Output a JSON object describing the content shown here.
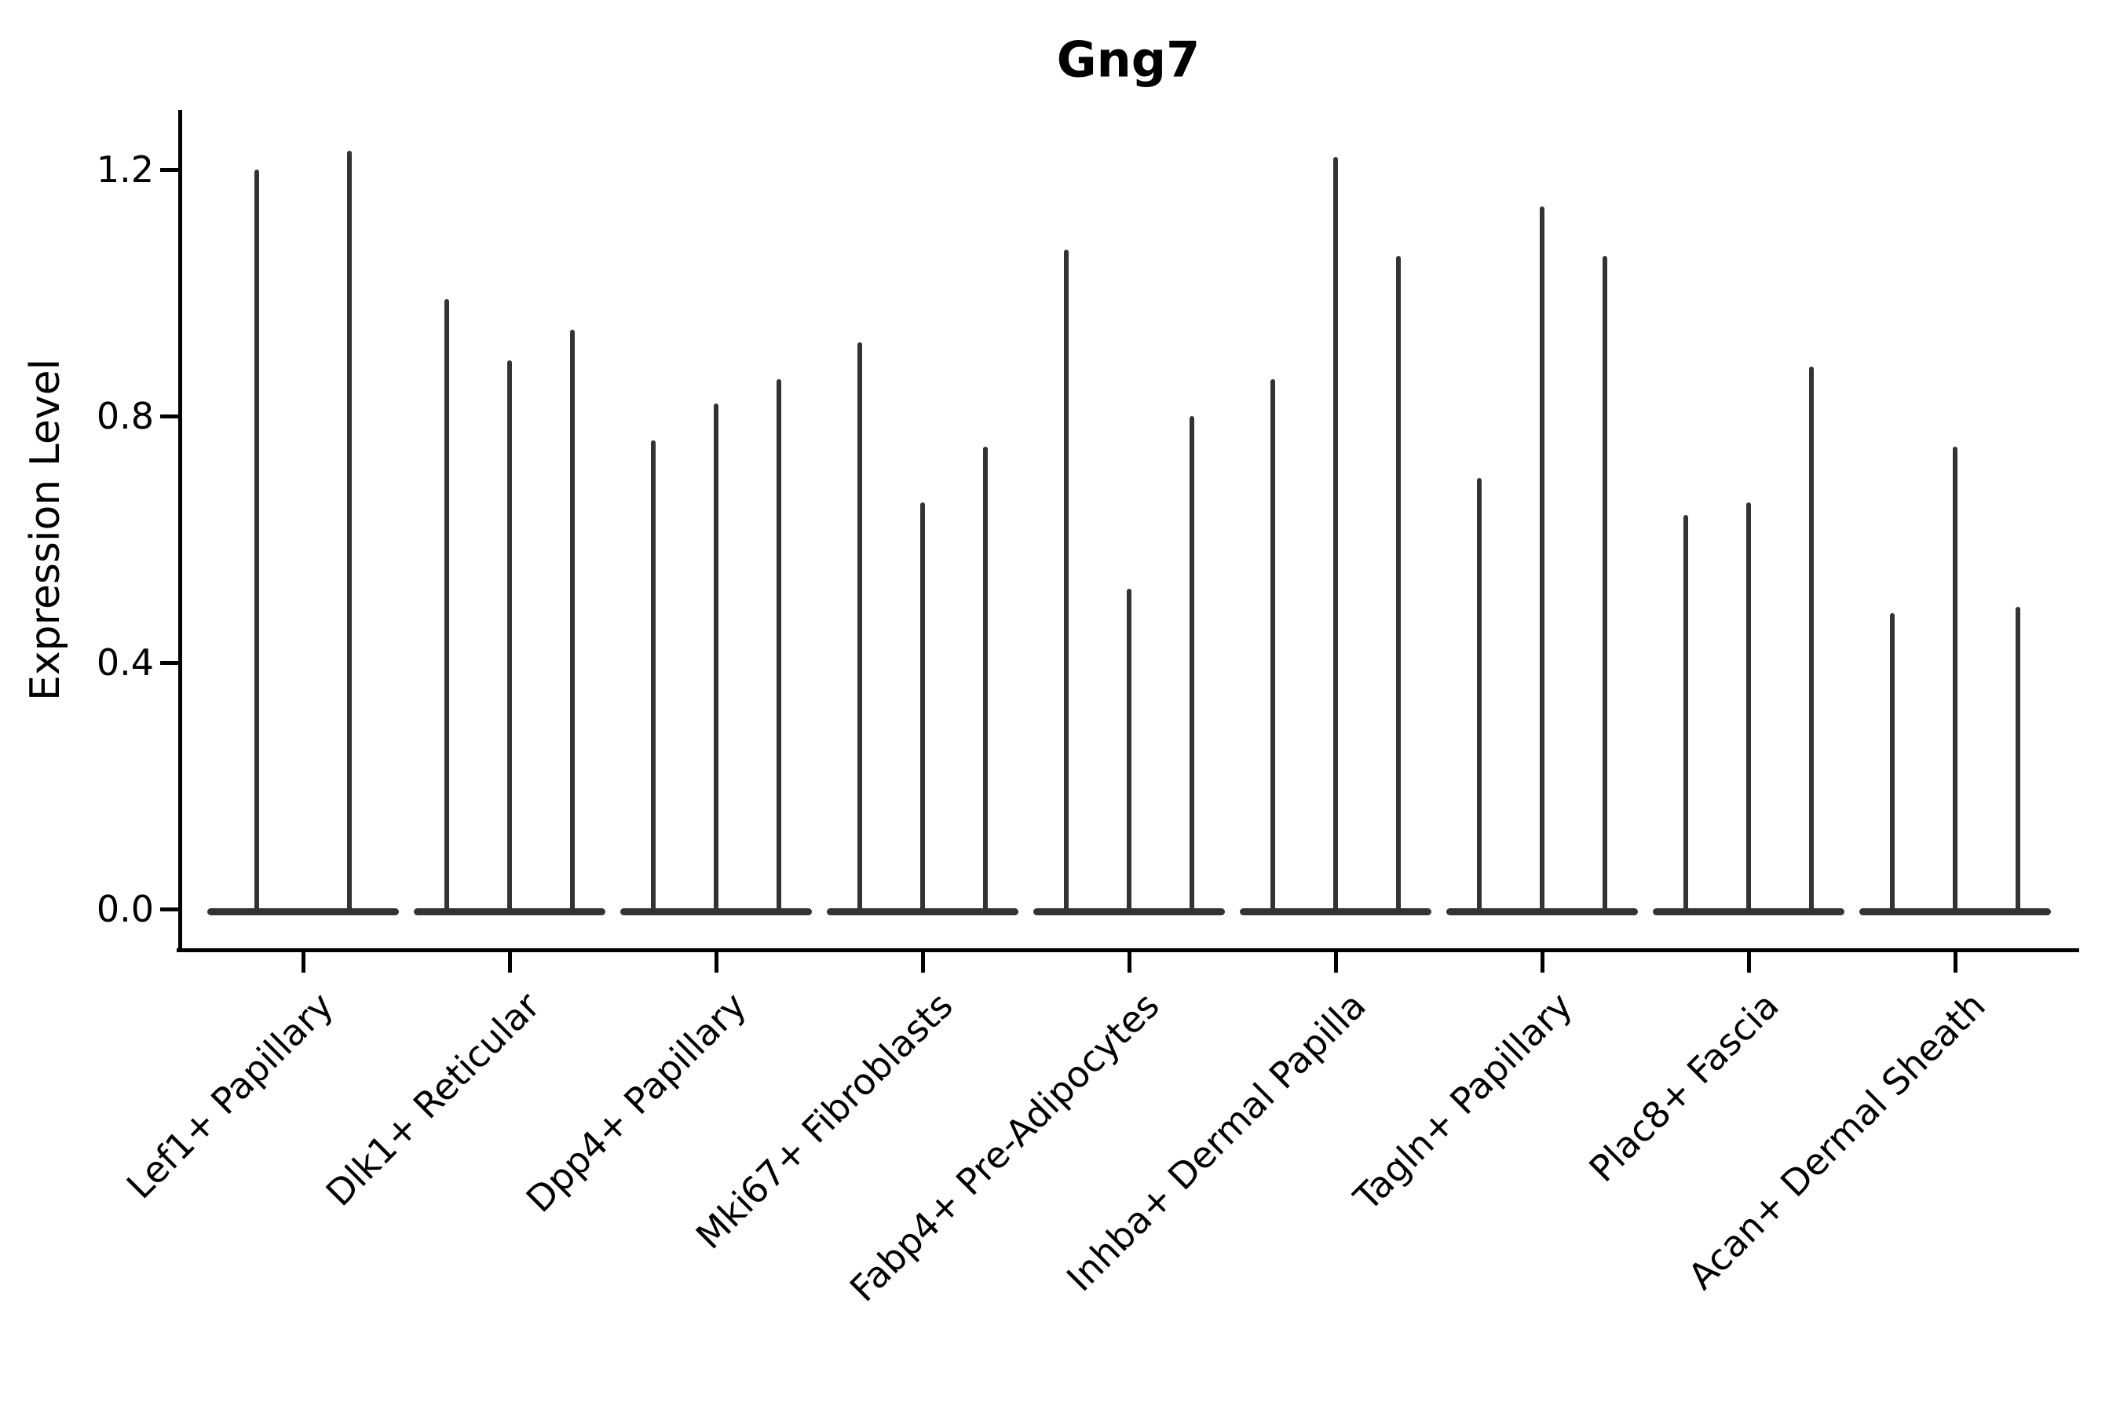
{
  "chart_data": {
    "type": "violin",
    "title": "Gng7",
    "ylabel": "Expression Level",
    "xlabel": "",
    "ylim": [
      0,
      1.3
    ],
    "yticks": [
      0.0,
      0.4,
      0.8,
      1.2
    ],
    "ytick_labels": [
      "0.0",
      "0.4",
      "0.8",
      "1.2"
    ],
    "grid": false,
    "legend_position": "none",
    "categories": [
      "Lef1+ Papillary",
      "Dlk1+ Reticular",
      "Dpp4+ Papillary",
      "Mki67+ Fibroblasts",
      "Fabp4+ Pre-Adipocytes",
      "Inhba+ Dermal Papilla",
      "Tagln+ Papillary",
      "Plac8+ Fascia",
      "Acan+ Dermal Sheath"
    ],
    "series": [
      {
        "category": "Lef1+ Papillary",
        "violin_peak_expression": [
          1.2,
          1.23
        ]
      },
      {
        "category": "Dlk1+ Reticular",
        "violin_peak_expression": [
          0.99,
          0.89,
          0.94
        ]
      },
      {
        "category": "Dpp4+ Papillary",
        "violin_peak_expression": [
          0.76,
          0.82,
          0.86
        ]
      },
      {
        "category": "Mki67+ Fibroblasts",
        "violin_peak_expression": [
          0.92,
          0.66,
          0.75
        ]
      },
      {
        "category": "Fabp4+ Pre-Adipocytes",
        "violin_peak_expression": [
          1.07,
          0.52,
          0.8
        ]
      },
      {
        "category": "Inhba+ Dermal Papilla",
        "violin_peak_expression": [
          0.86,
          1.22,
          1.06
        ]
      },
      {
        "category": "Tagln+ Papillary",
        "violin_peak_expression": [
          0.7,
          1.14,
          1.06
        ]
      },
      {
        "category": "Plac8+ Fascia",
        "violin_peak_expression": [
          0.64,
          0.66,
          0.88
        ]
      },
      {
        "category": "Acan+ Dermal Sheath",
        "violin_peak_expression": [
          0.48,
          0.75,
          0.49
        ]
      }
    ],
    "annotation": "Each violin is a density with mass concentrated at 0 (flat base) and a thin spike up to its maximum expression value."
  },
  "colors": {
    "violin": "#333333",
    "axis": "#000000",
    "background": "#ffffff"
  }
}
